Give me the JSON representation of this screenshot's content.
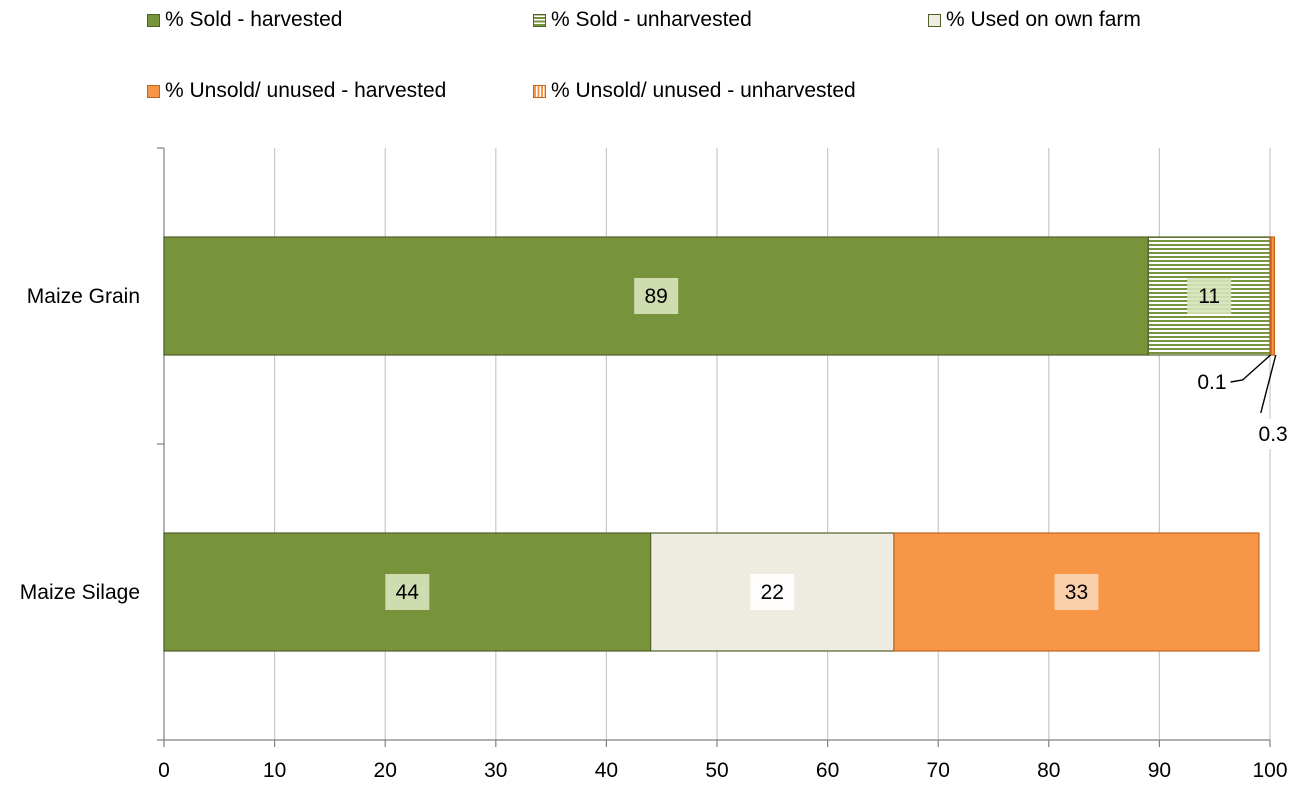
{
  "chart_data": {
    "type": "bar",
    "orientation": "horizontal",
    "stacked": true,
    "categories": [
      "Maize Grain",
      "Maize Silage"
    ],
    "series": [
      {
        "name": "% Sold - harvested",
        "values": [
          89,
          44
        ],
        "color": "#77933c",
        "pattern": "solid"
      },
      {
        "name": "% Sold - unharvested",
        "values": [
          11,
          0
        ],
        "color": "#77933c",
        "pattern": "horizontal-stripes"
      },
      {
        "name": "% Used on own farm",
        "values": [
          0,
          22
        ],
        "color": "#eeece1",
        "pattern": "solid"
      },
      {
        "name": "% Unsold/ unused - harvested",
        "values": [
          0.3,
          33
        ],
        "color": "#f79646",
        "pattern": "solid"
      },
      {
        "name": "% Unsold/ unused - unharvested",
        "values": [
          0.1,
          0
        ],
        "color": "#f79646",
        "pattern": "vertical-stripes"
      }
    ],
    "data_labels": [
      {
        "category": "Maize Grain",
        "series": "% Sold - harvested",
        "text": "89"
      },
      {
        "category": "Maize Grain",
        "series": "% Sold - unharvested",
        "text": "11"
      },
      {
        "category": "Maize Grain",
        "series": "% Unsold/ unused - unharvested",
        "text": "0.1",
        "callout": true
      },
      {
        "category": "Maize Grain",
        "series": "% Unsold/ unused - harvested",
        "text": "0.3",
        "callout": true
      },
      {
        "category": "Maize Silage",
        "series": "% Sold - harvested",
        "text": "44"
      },
      {
        "category": "Maize Silage",
        "series": "% Used on own farm",
        "text": "22"
      },
      {
        "category": "Maize Silage",
        "series": "% Unsold/ unused - harvested",
        "text": "33"
      }
    ],
    "x_ticks": [
      "0",
      "10",
      "20",
      "30",
      "40",
      "50",
      "60",
      "70",
      "80",
      "90",
      "100"
    ],
    "xlim": [
      0,
      100
    ],
    "grid": "vertical",
    "legend": "top",
    "title": "",
    "xlabel": "",
    "ylabel": ""
  }
}
